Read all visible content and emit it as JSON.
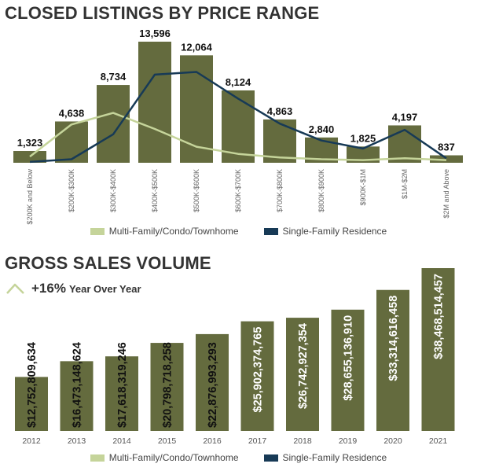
{
  "colors": {
    "bar": "#646b3e",
    "multi_family_line": "#c5d49a",
    "single_family_line": "#173a56",
    "yoy_arrow": "#c5d49a"
  },
  "chart1": {
    "title": "CLOSED LISTINGS BY PRICE RANGE",
    "legend": {
      "multi_family": "Multi-Family/Condo/Townhome",
      "single_family": "Single-Family Residence"
    },
    "chart_data": {
      "type": "bar",
      "title": "CLOSED LISTINGS BY PRICE RANGE",
      "categories": [
        "$200K and Below",
        "$200K-$300K",
        "$300K-$400K",
        "$400K-$500K",
        "$500K-$600K",
        "$600K-$700K",
        "$700K-$800K",
        "$800K-$900K",
        "$900K-$1M",
        "$1M-$2M",
        "$2M and Above"
      ],
      "values": [
        1323,
        4638,
        8734,
        13596,
        12064,
        8124,
        4863,
        2840,
        1825,
        4197,
        837
      ],
      "value_labels": [
        "1,323",
        "4,638",
        "8,734",
        "13,596",
        "12,064",
        "8,124",
        "4,863",
        "2,840",
        "1,825",
        "4,197",
        "837"
      ],
      "ylim": [
        0,
        14000
      ],
      "series": [
        {
          "name": "Multi-Family/Condo/Townhome",
          "type": "line",
          "values": [
            700,
            4300,
            5600,
            3800,
            1800,
            1000,
            600,
            400,
            300,
            500,
            300
          ]
        },
        {
          "name": "Single-Family Residence",
          "type": "line",
          "values": [
            100,
            400,
            3200,
            9900,
            10200,
            7200,
            4400,
            2500,
            1600,
            3700,
            500
          ]
        }
      ],
      "legend_position": "bottom"
    }
  },
  "chart2": {
    "title": "GROSS SALES VOLUME",
    "yoy": {
      "percent": "+16%",
      "label": "Year Over Year"
    },
    "legend": {
      "multi_family": "Multi-Family/Condo/Townhome",
      "single_family": "Single-Family Residence"
    },
    "chart_data": {
      "type": "bar",
      "title": "GROSS SALES VOLUME",
      "categories": [
        "2012",
        "2013",
        "2014",
        "2015",
        "2016",
        "2017",
        "2018",
        "2019",
        "2020",
        "2021"
      ],
      "values": [
        12752809634,
        16473148624,
        17618319246,
        20798718258,
        22876993293,
        25902374765,
        26742927354,
        28655136910,
        33314616458,
        38468514457
      ],
      "value_labels": [
        "$12,752,809,634",
        "$16,473,148,624",
        "$17,618,319,246",
        "$20,798,718,258",
        "$22,876,993,293",
        "$25,902,374,765",
        "$26,742,927,354",
        "$28,655,136,910",
        "$33,314,616,458",
        "$38,468,514,457"
      ],
      "ylim": [
        0,
        40000000000
      ],
      "legend_position": "bottom"
    }
  }
}
